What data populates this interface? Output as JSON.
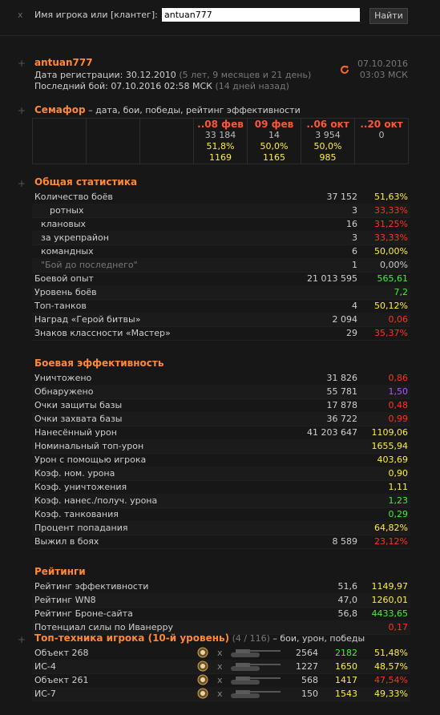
{
  "search": {
    "close": "x",
    "label": "Имя игрока или [клантег]:",
    "value": "antuan777",
    "button": "Найти"
  },
  "player": {
    "toggle": "+",
    "name": "antuan777",
    "reg_label": "Дата регистрации:",
    "reg_date": "30.12.2010",
    "reg_ago": "(5 лет, 9 месяцев и 21 день)",
    "last_label": "Последний бой:",
    "last_date": "07.10.2016 02:58 МСК",
    "last_ago": "(14 дней назад)",
    "update_date": "07.10.2016",
    "update_time": "03:03 МСК"
  },
  "semaphore": {
    "toggle": "+",
    "title": "Семафор",
    "subtitle": "– дата, бои, победы, рейтинг эффективности",
    "columns": [
      {
        "date": "..08 фев",
        "battles": "33 184",
        "wins": "51,8%",
        "rating": "1169"
      },
      {
        "date": "09 фев",
        "battles": "14",
        "wins": "50,0%",
        "rating": "1165"
      },
      {
        "date": "..06 окт",
        "battles": "3 954",
        "wins": "50,0%",
        "rating": "985"
      },
      {
        "date": "..20 окт",
        "battles": "0"
      }
    ]
  },
  "sections": [
    {
      "toggle": "+",
      "title": "Общая статистика",
      "rows": [
        {
          "label": "Количество боёв",
          "value": "37 152",
          "percent": "51,63%",
          "color": "#ffee33"
        },
        {
          "label": "ротных",
          "value": "3",
          "percent": "33,33%",
          "color": "#ff3322",
          "indent": 2
        },
        {
          "label": "клановых",
          "value": "16",
          "percent": "31,25%",
          "color": "#ff3322",
          "indent": 1
        },
        {
          "label": "за укрепрайон",
          "value": "3",
          "percent": "33,33%",
          "color": "#ff3322",
          "indent": 1
        },
        {
          "label": "командных",
          "value": "6",
          "percent": "50,00%",
          "color": "#ffee33",
          "indent": 1
        },
        {
          "label": "\"Бой до последнего\"",
          "value": "1",
          "percent": "0,00%",
          "color": "#cccccc",
          "indent": 1,
          "muted": true
        },
        {
          "label": "Боевой опыт",
          "value": "21 013 595",
          "percent": "565,61",
          "color": "#44ee33"
        },
        {
          "label": "Уровень боёв",
          "percent": "7,2",
          "color": "#44ee33"
        },
        {
          "label": "Топ-танков",
          "value": "4",
          "percent": "50,12%",
          "color": "#ffee33"
        },
        {
          "label": "Наград «Герой битвы»",
          "value": "2 094",
          "percent": "0,06",
          "color": "#ff3322"
        },
        {
          "label": "Знаков классности «Мастер»",
          "value": "29",
          "percent": "35,37%",
          "color": "#ff3322"
        }
      ]
    },
    {
      "title": "Боевая эффективность",
      "rows": [
        {
          "label": "Уничтожено",
          "value": "31 826",
          "percent": "0,86",
          "color": "#ff3322"
        },
        {
          "label": "Обнаружено",
          "value": "55 781",
          "percent": "1,50",
          "color": "#b455ff"
        },
        {
          "label": "Очки защиты базы",
          "value": "17 878",
          "percent": "0,48",
          "color": "#ff3322"
        },
        {
          "label": "Очки захвата базы",
          "value": "36 722",
          "percent": "0,99",
          "color": "#ff3322"
        },
        {
          "label": "Нанесённый урон",
          "value": "41 203 647",
          "percent": "1109,06",
          "color": "#ffee33"
        },
        {
          "label": "Номинальный топ-урон",
          "percent": "1655,94",
          "color": "#ffee33"
        },
        {
          "label": "Урон с помощью игрока",
          "percent": "403,69",
          "color": "#ffee33"
        },
        {
          "label": "Коэф. ном. урона",
          "percent": "0,90",
          "color": "#ffee33"
        },
        {
          "label": "Коэф. уничтожения",
          "percent": "1,11",
          "color": "#ffee33"
        },
        {
          "label": "Коэф. нанес./получ. урона",
          "percent": "1,23",
          "color": "#44ee33"
        },
        {
          "label": "Коэф. танкования",
          "percent": "0,29",
          "color": "#44ee33"
        },
        {
          "label": "Процент попадания",
          "percent": "64,82%",
          "color": "#ffee33"
        },
        {
          "label": "Выжил в боях",
          "value": "8 589",
          "percent": "23,12%",
          "color": "#ff3322"
        }
      ]
    },
    {
      "title": "Рейтинги",
      "rows": [
        {
          "label": "Рейтинг эффективности",
          "value": "51,6",
          "percent": "1149,97",
          "color": "#ffee33"
        },
        {
          "label": "Рейтинг WN8",
          "value": "47,0",
          "percent": "1260,01",
          "color": "#ffee33"
        },
        {
          "label": "Рейтинг Броне-сайта",
          "value": "56,8",
          "percent": "4433,65",
          "color": "#44ee33"
        },
        {
          "label": "Потенциал силы по Иванерру",
          "percent": "0,17",
          "color": "#ff3322"
        }
      ]
    }
  ],
  "top": {
    "toggle": "+",
    "title": "Топ-техника игрока (10-й уровень)",
    "count": "(4 / 116)",
    "subtitle": "– бои, урон, победы",
    "rows": [
      {
        "name": "Объект 268",
        "mark": "x",
        "battles": "2564",
        "damage": "2182",
        "damage_color": "#44ee33",
        "wins": "51,48%",
        "wins_color": "#ffee33"
      },
      {
        "name": "ИС-4",
        "mark": "x",
        "battles": "1227",
        "damage": "1650",
        "damage_color": "#ffee33",
        "wins": "48,57%",
        "wins_color": "#ffee33"
      },
      {
        "name": "Объект 261",
        "mark": "x",
        "battles": "568",
        "damage": "1417",
        "damage_color": "#ffee33",
        "wins": "47,54%",
        "wins_color": "#ff3322"
      },
      {
        "name": "ИС-7",
        "mark": "x",
        "battles": "150",
        "damage": "1543",
        "damage_color": "#ffee33",
        "wins": "49,33%",
        "wins_color": "#ffee33"
      }
    ]
  }
}
